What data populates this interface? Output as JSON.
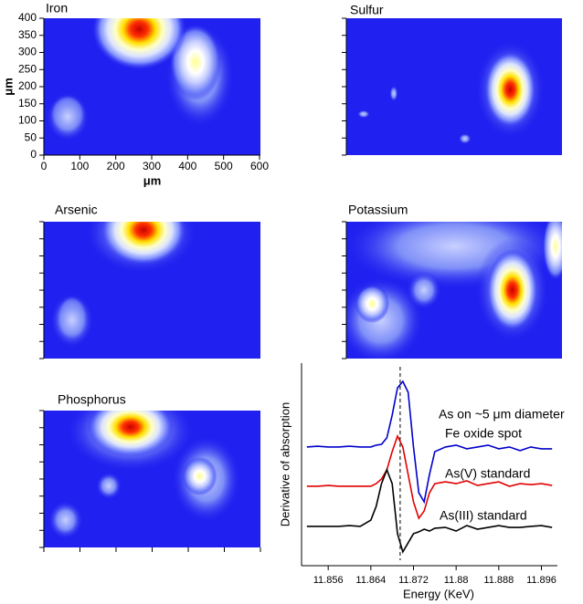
{
  "chart_data": [
    {
      "type": "heatmap",
      "title": "Iron",
      "xlabel": "μm",
      "ylabel": "μm",
      "xlim": [
        0,
        600
      ],
      "ylim": [
        0,
        400
      ],
      "xticks": [
        0,
        100,
        200,
        300,
        400,
        500,
        600
      ],
      "yticks": [
        0,
        50,
        100,
        150,
        200,
        250,
        300,
        350,
        400
      ]
    },
    {
      "type": "heatmap",
      "title": "Sulfur"
    },
    {
      "type": "heatmap",
      "title": "Arsenic"
    },
    {
      "type": "heatmap",
      "title": "Potassium"
    },
    {
      "type": "heatmap",
      "title": "Phosphorus"
    },
    {
      "type": "line",
      "xlabel": "Energy (KeV)",
      "ylabel": "Derivative of absorption",
      "xlim": [
        11.851,
        11.899
      ],
      "ylim": [
        0,
        10
      ],
      "xticks": [
        11.856,
        11.864,
        11.872,
        11.88,
        11.888,
        11.896
      ],
      "reference_x": 11.8695,
      "x": [
        11.852,
        11.854,
        11.856,
        11.858,
        11.86,
        11.862,
        11.864,
        11.865,
        11.866,
        11.867,
        11.868,
        11.869,
        11.87,
        11.871,
        11.872,
        11.873,
        11.874,
        11.875,
        11.876,
        11.878,
        11.88,
        11.882,
        11.884,
        11.886,
        11.888,
        11.89,
        11.892,
        11.894,
        11.896,
        11.898
      ],
      "series": [
        {
          "label_lines": [
            "As on ~5 μm diameter",
            "Fe oxide spot"
          ],
          "color": "#0000cc",
          "values": [
            5.86,
            5.9,
            5.86,
            5.86,
            5.9,
            5.86,
            5.86,
            5.95,
            5.99,
            6.31,
            7.43,
            8.78,
            9.1,
            8.56,
            5.86,
            3.6,
            3.15,
            4.5,
            5.63,
            5.86,
            5.95,
            5.77,
            5.86,
            5.95,
            5.77,
            5.86,
            5.68,
            5.86,
            5.77,
            5.77
          ]
        },
        {
          "label_lines": [
            "As(V) standard"
          ],
          "color": "#e00000",
          "values": [
            3.92,
            3.92,
            3.96,
            3.92,
            3.92,
            3.92,
            3.92,
            4.05,
            4.28,
            4.73,
            5.63,
            6.4,
            5.86,
            4.5,
            3.15,
            2.34,
            2.7,
            3.6,
            4.05,
            4.14,
            4.05,
            4.19,
            3.96,
            4.05,
            4.14,
            3.92,
            4.05,
            4.0,
            4.05,
            3.96
          ]
        },
        {
          "label_lines": [
            "As(III) standard"
          ],
          "color": "#000000",
          "values": [
            1.94,
            1.94,
            1.94,
            1.94,
            1.98,
            1.94,
            2.25,
            2.93,
            4.05,
            4.73,
            4.05,
            1.58,
            0.68,
            1.13,
            1.58,
            1.67,
            1.8,
            1.71,
            1.85,
            1.89,
            1.71,
            1.98,
            1.8,
            1.89,
            1.98,
            1.89,
            1.89,
            1.94,
            1.98,
            1.89
          ]
        }
      ]
    }
  ]
}
